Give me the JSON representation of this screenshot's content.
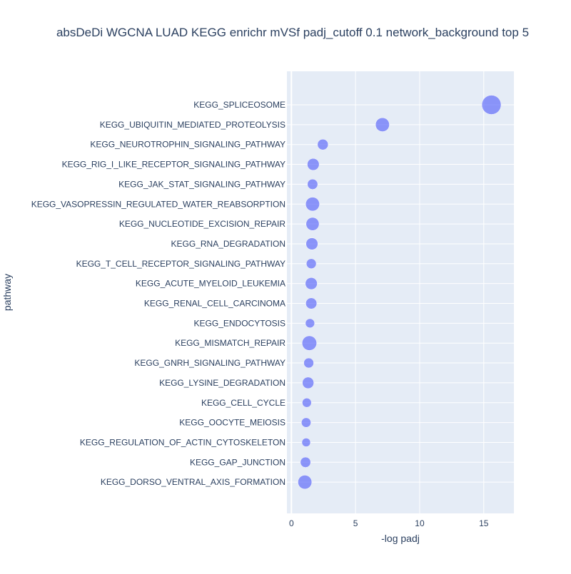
{
  "chart_data": {
    "type": "scatter",
    "title": "absDeDi WGCNA LUAD KEGG enrichr mVSf padj_cutoff 0.1 network_background top 5",
    "xlabel": "-log padj",
    "ylabel": "pathway",
    "xlim": [
      -0.35,
      17.35
    ],
    "xticks": [
      0,
      5,
      10,
      15
    ],
    "grid": true,
    "marker_color": "#636efa",
    "plot_background": "#e5ecf6",
    "points": [
      {
        "pathway": "KEGG_SPLICEOSOME",
        "x": 15.6,
        "size": 1.0
      },
      {
        "pathway": "KEGG_UBIQUITIN_MEDIATED_PROTEOLYSIS",
        "x": 7.1,
        "size": 0.72
      },
      {
        "pathway": "KEGG_NEUROTROPHIN_SIGNALING_PATHWAY",
        "x": 2.45,
        "size": 0.56
      },
      {
        "pathway": "KEGG_RIG_I_LIKE_RECEPTOR_SIGNALING_PATHWAY",
        "x": 1.7,
        "size": 0.62
      },
      {
        "pathway": "KEGG_JAK_STAT_SIGNALING_PATHWAY",
        "x": 1.65,
        "size": 0.54
      },
      {
        "pathway": "KEGG_VASOPRESSIN_REGULATED_WATER_REABSORPTION",
        "x": 1.65,
        "size": 0.72
      },
      {
        "pathway": "KEGG_NUCLEOTIDE_EXCISION_REPAIR",
        "x": 1.65,
        "size": 0.68
      },
      {
        "pathway": "KEGG_RNA_DEGRADATION",
        "x": 1.6,
        "size": 0.62
      },
      {
        "pathway": "KEGG_T_CELL_RECEPTOR_SIGNALING_PATHWAY",
        "x": 1.55,
        "size": 0.52
      },
      {
        "pathway": "KEGG_ACUTE_MYELOID_LEUKEMIA",
        "x": 1.55,
        "size": 0.62
      },
      {
        "pathway": "KEGG_RENAL_CELL_CARCINOMA",
        "x": 1.55,
        "size": 0.58
      },
      {
        "pathway": "KEGG_ENDOCYTOSIS",
        "x": 1.45,
        "size": 0.48
      },
      {
        "pathway": "KEGG_MISMATCH_REPAIR",
        "x": 1.4,
        "size": 0.76
      },
      {
        "pathway": "KEGG_GNRH_SIGNALING_PATHWAY",
        "x": 1.35,
        "size": 0.52
      },
      {
        "pathway": "KEGG_LYSINE_DEGRADATION",
        "x": 1.3,
        "size": 0.6
      },
      {
        "pathway": "KEGG_CELL_CYCLE",
        "x": 1.2,
        "size": 0.48
      },
      {
        "pathway": "KEGG_OOCYTE_MEIOSIS",
        "x": 1.15,
        "size": 0.5
      },
      {
        "pathway": "KEGG_REGULATION_OF_ACTIN_CYTOSKELETON",
        "x": 1.15,
        "size": 0.45
      },
      {
        "pathway": "KEGG_GAP_JUNCTION",
        "x": 1.1,
        "size": 0.54
      },
      {
        "pathway": "KEGG_DORSO_VENTRAL_AXIS_FORMATION",
        "x": 1.05,
        "size": 0.72
      }
    ]
  }
}
